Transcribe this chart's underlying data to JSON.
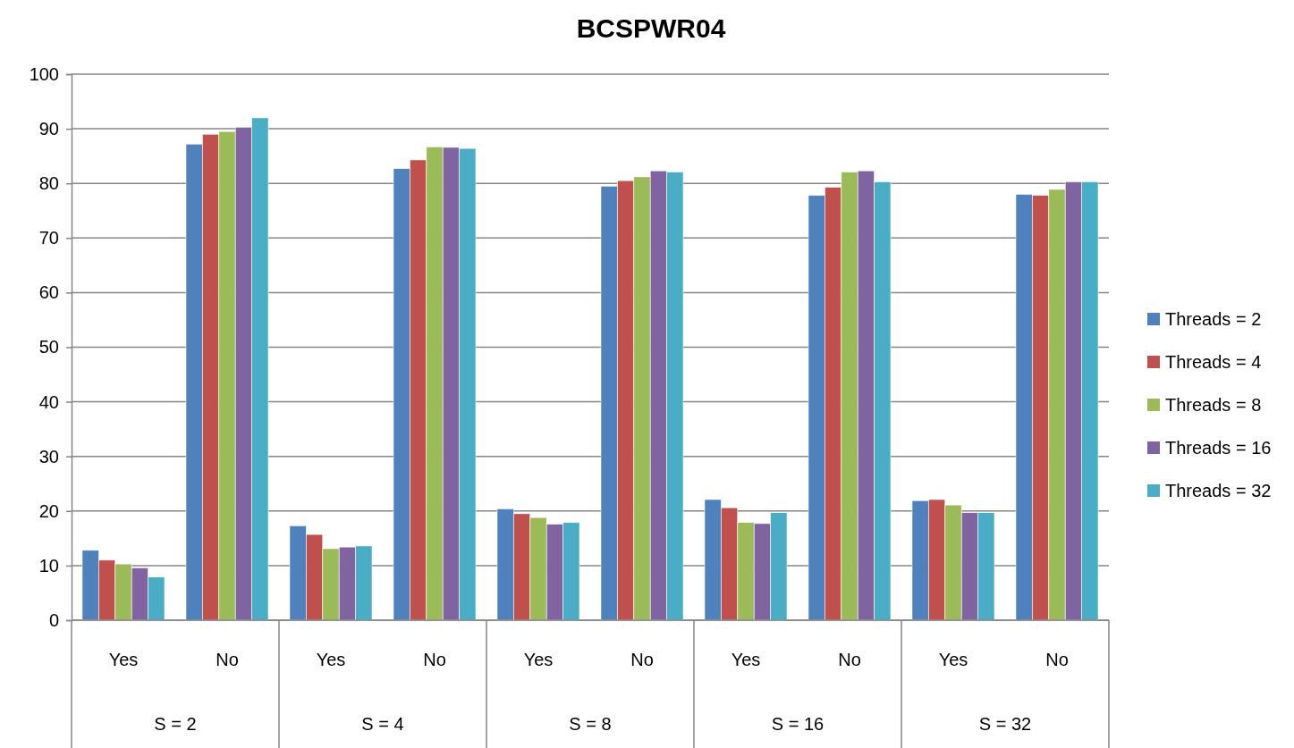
{
  "chart_data": {
    "type": "bar",
    "title": "BCSPWR04",
    "categories": [
      "Yes",
      "No",
      "Yes",
      "No",
      "Yes",
      "No",
      "Yes",
      "No",
      "Yes",
      "No"
    ],
    "annotations": [
      "S = 2",
      "S = 4",
      "S = 8",
      "S = 16",
      "S = 32"
    ],
    "ylim": [
      0,
      100
    ],
    "yticks": [
      0,
      10,
      20,
      30,
      40,
      50,
      60,
      70,
      80,
      90,
      100
    ],
    "grid": "y",
    "legend": "right",
    "series": [
      {
        "name": "Threads = 2",
        "color": "#4f81bd",
        "values": [
          12.8,
          87.2,
          17.3,
          82.7,
          20.4,
          79.5,
          22.1,
          77.8,
          21.9,
          78.0
        ]
      },
      {
        "name": "Threads = 4",
        "color": "#c0504d",
        "values": [
          11.0,
          89.0,
          15.7,
          84.3,
          19.5,
          80.5,
          20.6,
          79.3,
          22.1,
          77.8
        ]
      },
      {
        "name": "Threads = 8",
        "color": "#9bbb59",
        "values": [
          10.3,
          89.5,
          13.1,
          86.7,
          18.8,
          81.2,
          17.9,
          82.1,
          21.1,
          78.9
        ]
      },
      {
        "name": "Threads = 16",
        "color": "#8064a2",
        "values": [
          9.6,
          90.3,
          13.4,
          86.6,
          17.6,
          82.3,
          17.7,
          82.3,
          19.7,
          80.3
        ]
      },
      {
        "name": "Threads = 32",
        "color": "#4bacc6",
        "values": [
          7.9,
          92.0,
          13.6,
          86.4,
          17.9,
          82.1,
          19.7,
          80.3,
          19.7,
          80.3
        ]
      }
    ]
  }
}
